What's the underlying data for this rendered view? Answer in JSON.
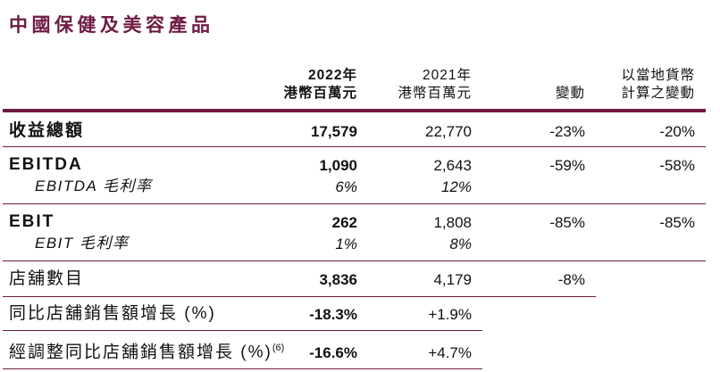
{
  "title": "中國保健及美容產品",
  "colors": {
    "accent_maroon": "#6e1b42",
    "body_text": "#111111"
  },
  "table": {
    "headers": {
      "y2022": {
        "line1": "2022年",
        "line2": "港幣百萬元"
      },
      "y2021": {
        "line1": "2021年",
        "line2": "港幣百萬元"
      },
      "change": "變動",
      "local_change": {
        "line1": "以當地貨幣",
        "line2": "計算之變動"
      }
    },
    "rows": {
      "revenue": {
        "label": "收益總額",
        "v2022": "17,579",
        "v2021": "22,770",
        "change": "-23%",
        "local_change": "-20%"
      },
      "ebitda": {
        "label": "EBITDA",
        "v2022": "1,090",
        "v2021": "2,643",
        "change": "-59%",
        "local_change": "-58%"
      },
      "ebitda_margin": {
        "label": "EBITDA 毛利率",
        "v2022": "6%",
        "v2021": "12%"
      },
      "ebit": {
        "label": "EBIT",
        "v2022": "262",
        "v2021": "1,808",
        "change": "-85%",
        "local_change": "-85%"
      },
      "ebit_margin": {
        "label": "EBIT 毛利率",
        "v2022": "1%",
        "v2021": "8%"
      },
      "stores": {
        "label": "店舖數目",
        "v2022": "3,836",
        "v2021": "4,179",
        "change": "-8%"
      },
      "sssg": {
        "label": "同比店舖銷售額增長 (%)",
        "v2022": "-18.3%",
        "v2021": "+1.9%"
      },
      "adjusted_sssg": {
        "label": "經調整同比店舖銷售額增長 (%)",
        "footnote": "(6)",
        "v2022": "-16.6%",
        "v2021": "+4.7%"
      }
    }
  }
}
